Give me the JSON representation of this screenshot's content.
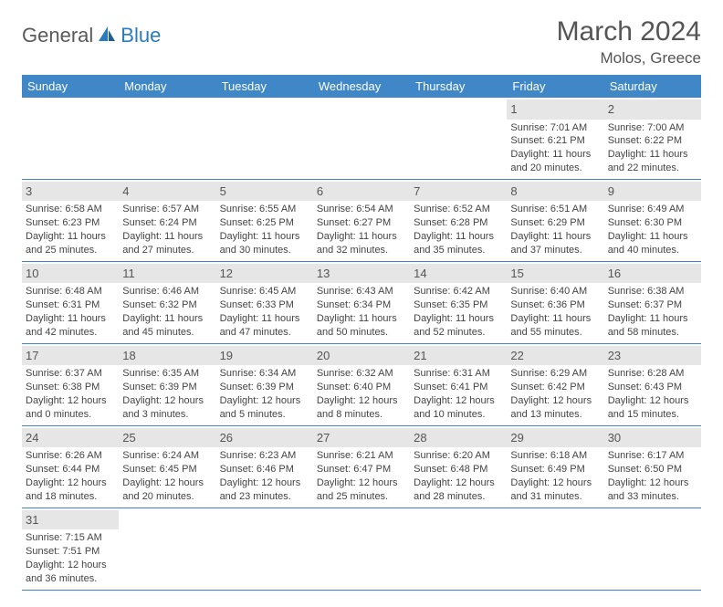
{
  "brand": {
    "name1": "General",
    "name2": "Blue"
  },
  "title": {
    "month": "March 2024",
    "location": "Molos, Greece"
  },
  "colors": {
    "header_bg": "#3f87c6",
    "daynum_bg": "#e6e6e6",
    "border": "#3f87c6"
  },
  "weekdays": [
    "Sunday",
    "Monday",
    "Tuesday",
    "Wednesday",
    "Thursday",
    "Friday",
    "Saturday"
  ],
  "weeks": [
    [
      null,
      null,
      null,
      null,
      null,
      {
        "n": "1",
        "sr": "Sunrise: 7:01 AM",
        "ss": "Sunset: 6:21 PM",
        "d1": "Daylight: 11 hours",
        "d2": "and 20 minutes."
      },
      {
        "n": "2",
        "sr": "Sunrise: 7:00 AM",
        "ss": "Sunset: 6:22 PM",
        "d1": "Daylight: 11 hours",
        "d2": "and 22 minutes."
      }
    ],
    [
      {
        "n": "3",
        "sr": "Sunrise: 6:58 AM",
        "ss": "Sunset: 6:23 PM",
        "d1": "Daylight: 11 hours",
        "d2": "and 25 minutes."
      },
      {
        "n": "4",
        "sr": "Sunrise: 6:57 AM",
        "ss": "Sunset: 6:24 PM",
        "d1": "Daylight: 11 hours",
        "d2": "and 27 minutes."
      },
      {
        "n": "5",
        "sr": "Sunrise: 6:55 AM",
        "ss": "Sunset: 6:25 PM",
        "d1": "Daylight: 11 hours",
        "d2": "and 30 minutes."
      },
      {
        "n": "6",
        "sr": "Sunrise: 6:54 AM",
        "ss": "Sunset: 6:27 PM",
        "d1": "Daylight: 11 hours",
        "d2": "and 32 minutes."
      },
      {
        "n": "7",
        "sr": "Sunrise: 6:52 AM",
        "ss": "Sunset: 6:28 PM",
        "d1": "Daylight: 11 hours",
        "d2": "and 35 minutes."
      },
      {
        "n": "8",
        "sr": "Sunrise: 6:51 AM",
        "ss": "Sunset: 6:29 PM",
        "d1": "Daylight: 11 hours",
        "d2": "and 37 minutes."
      },
      {
        "n": "9",
        "sr": "Sunrise: 6:49 AM",
        "ss": "Sunset: 6:30 PM",
        "d1": "Daylight: 11 hours",
        "d2": "and 40 minutes."
      }
    ],
    [
      {
        "n": "10",
        "sr": "Sunrise: 6:48 AM",
        "ss": "Sunset: 6:31 PM",
        "d1": "Daylight: 11 hours",
        "d2": "and 42 minutes."
      },
      {
        "n": "11",
        "sr": "Sunrise: 6:46 AM",
        "ss": "Sunset: 6:32 PM",
        "d1": "Daylight: 11 hours",
        "d2": "and 45 minutes."
      },
      {
        "n": "12",
        "sr": "Sunrise: 6:45 AM",
        "ss": "Sunset: 6:33 PM",
        "d1": "Daylight: 11 hours",
        "d2": "and 47 minutes."
      },
      {
        "n": "13",
        "sr": "Sunrise: 6:43 AM",
        "ss": "Sunset: 6:34 PM",
        "d1": "Daylight: 11 hours",
        "d2": "and 50 minutes."
      },
      {
        "n": "14",
        "sr": "Sunrise: 6:42 AM",
        "ss": "Sunset: 6:35 PM",
        "d1": "Daylight: 11 hours",
        "d2": "and 52 minutes."
      },
      {
        "n": "15",
        "sr": "Sunrise: 6:40 AM",
        "ss": "Sunset: 6:36 PM",
        "d1": "Daylight: 11 hours",
        "d2": "and 55 minutes."
      },
      {
        "n": "16",
        "sr": "Sunrise: 6:38 AM",
        "ss": "Sunset: 6:37 PM",
        "d1": "Daylight: 11 hours",
        "d2": "and 58 minutes."
      }
    ],
    [
      {
        "n": "17",
        "sr": "Sunrise: 6:37 AM",
        "ss": "Sunset: 6:38 PM",
        "d1": "Daylight: 12 hours",
        "d2": "and 0 minutes."
      },
      {
        "n": "18",
        "sr": "Sunrise: 6:35 AM",
        "ss": "Sunset: 6:39 PM",
        "d1": "Daylight: 12 hours",
        "d2": "and 3 minutes."
      },
      {
        "n": "19",
        "sr": "Sunrise: 6:34 AM",
        "ss": "Sunset: 6:39 PM",
        "d1": "Daylight: 12 hours",
        "d2": "and 5 minutes."
      },
      {
        "n": "20",
        "sr": "Sunrise: 6:32 AM",
        "ss": "Sunset: 6:40 PM",
        "d1": "Daylight: 12 hours",
        "d2": "and 8 minutes."
      },
      {
        "n": "21",
        "sr": "Sunrise: 6:31 AM",
        "ss": "Sunset: 6:41 PM",
        "d1": "Daylight: 12 hours",
        "d2": "and 10 minutes."
      },
      {
        "n": "22",
        "sr": "Sunrise: 6:29 AM",
        "ss": "Sunset: 6:42 PM",
        "d1": "Daylight: 12 hours",
        "d2": "and 13 minutes."
      },
      {
        "n": "23",
        "sr": "Sunrise: 6:28 AM",
        "ss": "Sunset: 6:43 PM",
        "d1": "Daylight: 12 hours",
        "d2": "and 15 minutes."
      }
    ],
    [
      {
        "n": "24",
        "sr": "Sunrise: 6:26 AM",
        "ss": "Sunset: 6:44 PM",
        "d1": "Daylight: 12 hours",
        "d2": "and 18 minutes."
      },
      {
        "n": "25",
        "sr": "Sunrise: 6:24 AM",
        "ss": "Sunset: 6:45 PM",
        "d1": "Daylight: 12 hours",
        "d2": "and 20 minutes."
      },
      {
        "n": "26",
        "sr": "Sunrise: 6:23 AM",
        "ss": "Sunset: 6:46 PM",
        "d1": "Daylight: 12 hours",
        "d2": "and 23 minutes."
      },
      {
        "n": "27",
        "sr": "Sunrise: 6:21 AM",
        "ss": "Sunset: 6:47 PM",
        "d1": "Daylight: 12 hours",
        "d2": "and 25 minutes."
      },
      {
        "n": "28",
        "sr": "Sunrise: 6:20 AM",
        "ss": "Sunset: 6:48 PM",
        "d1": "Daylight: 12 hours",
        "d2": "and 28 minutes."
      },
      {
        "n": "29",
        "sr": "Sunrise: 6:18 AM",
        "ss": "Sunset: 6:49 PM",
        "d1": "Daylight: 12 hours",
        "d2": "and 31 minutes."
      },
      {
        "n": "30",
        "sr": "Sunrise: 6:17 AM",
        "ss": "Sunset: 6:50 PM",
        "d1": "Daylight: 12 hours",
        "d2": "and 33 minutes."
      }
    ],
    [
      {
        "n": "31",
        "sr": "Sunrise: 7:15 AM",
        "ss": "Sunset: 7:51 PM",
        "d1": "Daylight: 12 hours",
        "d2": "and 36 minutes."
      },
      null,
      null,
      null,
      null,
      null,
      null
    ]
  ]
}
